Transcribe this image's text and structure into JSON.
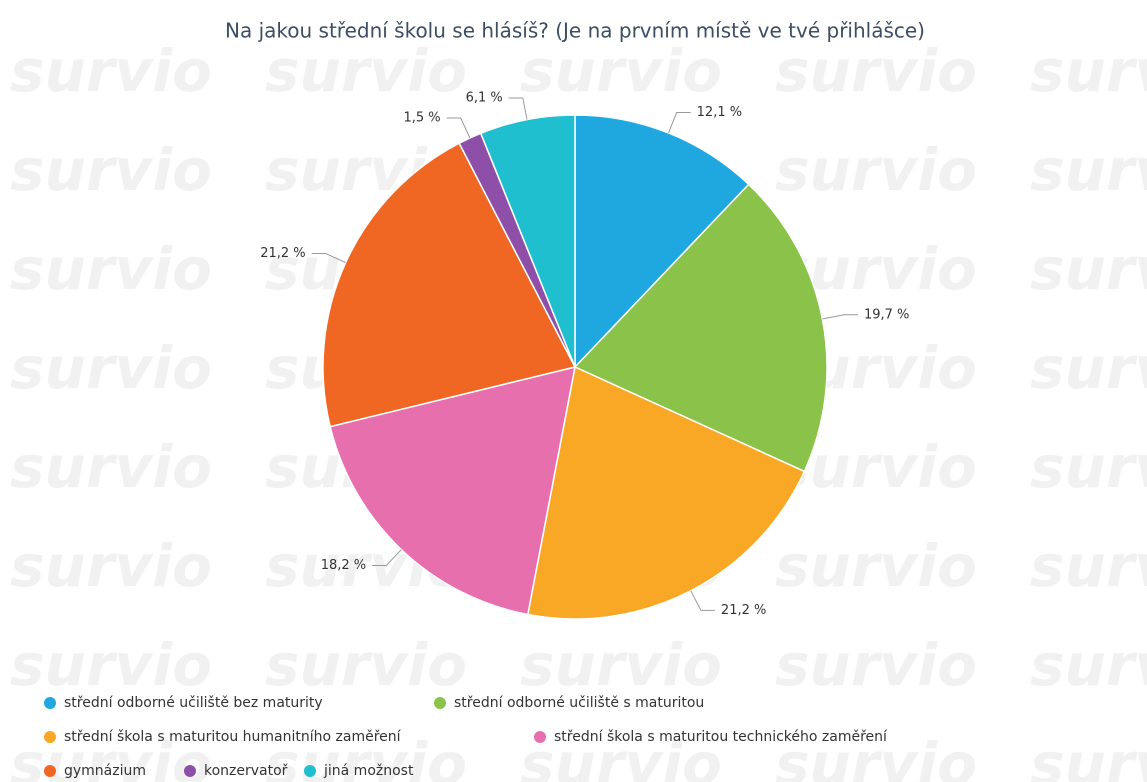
{
  "watermark": "survio",
  "chart_data": {
    "type": "pie",
    "title": "Na jakou střední školu se hlásíš? (Je na prvním místě ve tvé přihlášce)",
    "categories": [
      "střední odborné učiliště bez maturity",
      "střední odborné učiliště s maturitou",
      "střední škola s maturitou humanitního zaměření",
      "střední škola s maturitou technického zaměření",
      "gymnázium",
      "konzervatoř",
      "jiná možnost"
    ],
    "values": [
      12.1,
      19.7,
      21.2,
      18.2,
      21.2,
      1.5,
      6.1
    ],
    "value_labels": [
      "12,1 %",
      "19,7 %",
      "21,2 %",
      "18,2 %",
      "21,2 %",
      "1,5 %",
      "6,1 %"
    ],
    "colors": [
      "#1fa8e0",
      "#8bc34a",
      "#f9a825",
      "#e86fae",
      "#f06724",
      "#8e4fa8",
      "#1fbfcf"
    ],
    "legend": "bottom-left"
  }
}
